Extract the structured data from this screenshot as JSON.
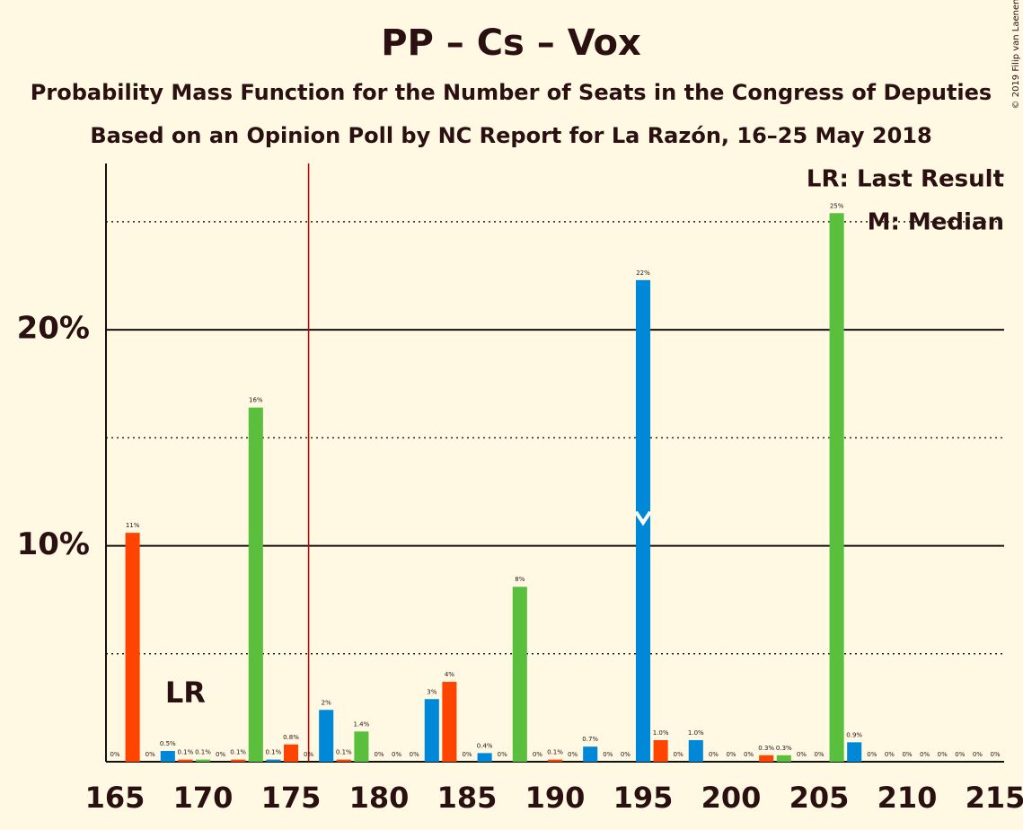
{
  "chart_data": {
    "type": "bar",
    "title": "PP – Cs – Vox",
    "subtitle": "Probability Mass Function for the Number of Seats in the Congress of Deputies",
    "subtitle2": "Based on an Opinion Poll by NC Report for La Razón, 16–25 May 2018",
    "copyright": "© 2019 Filip van Laenen",
    "legend_lr": "LR: Last Result",
    "legend_median": "M: Median",
    "lr_label": "LR",
    "last_result": 169,
    "median": 195,
    "majority": 176,
    "x": [
      165,
      166,
      167,
      168,
      169,
      170,
      171,
      172,
      173,
      174,
      175,
      176,
      177,
      178,
      179,
      180,
      181,
      182,
      183,
      184,
      185,
      186,
      187,
      188,
      189,
      190,
      191,
      192,
      193,
      194,
      195,
      196,
      197,
      198,
      199,
      200,
      201,
      202,
      203,
      204,
      205,
      206,
      207,
      208,
      209,
      210,
      211,
      212,
      213,
      214,
      215
    ],
    "values": [
      0,
      10.6,
      0,
      0.5,
      0.1,
      0.1,
      0,
      0.1,
      16.4,
      0.1,
      0.8,
      0,
      2.4,
      0.1,
      1.4,
      0,
      0,
      0,
      2.9,
      3.7,
      0,
      0.4,
      0,
      8.1,
      0,
      0.1,
      0,
      0.7,
      0,
      0,
      22.3,
      1.0,
      0,
      1.0,
      0,
      0,
      0,
      0.3,
      0.3,
      0,
      0,
      25.4,
      0.9,
      0,
      0,
      0,
      0,
      0,
      0,
      0,
      0
    ],
    "value_labels": [
      "0%",
      "11%",
      "0%",
      "0.5%",
      "0.1%",
      "0.1%",
      "0%",
      "0.1%",
      "16%",
      "0.1%",
      "0.8%",
      "0%",
      "2%",
      "0.1%",
      "1.4%",
      "0%",
      "0%",
      "0%",
      "3%",
      "4%",
      "0%",
      "0.4%",
      "0%",
      "8%",
      "0%",
      "0.1%",
      "0%",
      "0.7%",
      "0%",
      "0%",
      "22%",
      "1.0%",
      "0%",
      "1.0%",
      "0%",
      "0%",
      "0%",
      "0.3%",
      "0.3%",
      "0%",
      "0%",
      "25%",
      "0.9%",
      "0%",
      "0%",
      "0%",
      "0%",
      "0%",
      "0%",
      "0%",
      "0%"
    ],
    "colors": [
      "#0088d8",
      "#ff4400",
      "#5abf3c",
      "#0088d8",
      "#ff4400",
      "#5abf3c",
      "#0088d8",
      "#ff4400",
      "#5abf3c",
      "#0088d8",
      "#ff4400",
      "#5abf3c",
      "#0088d8",
      "#ff4400",
      "#5abf3c",
      "#0088d8",
      "#ff4400",
      "#5abf3c",
      "#0088d8",
      "#ff4400",
      "#5abf3c",
      "#0088d8",
      "#ff4400",
      "#5abf3c",
      "#0088d8",
      "#ff4400",
      "#5abf3c",
      "#0088d8",
      "#ff4400",
      "#5abf3c",
      "#0088d8",
      "#ff4400",
      "#5abf3c",
      "#0088d8",
      "#ff4400",
      "#ff4400",
      "#5abf3c",
      "#ff4400",
      "#5abf3c",
      "#0088d8",
      "#ff4400",
      "#5abf3c",
      "#0088d8",
      "#ff4400",
      "#5abf3c",
      "#0088d8",
      "#ff4400",
      "#5abf3c",
      "#0088d8",
      "#ff4400",
      "#5abf3c"
    ],
    "xlim": [
      165,
      215
    ],
    "xticks": [
      165,
      170,
      175,
      180,
      185,
      190,
      195,
      200,
      205,
      210,
      215
    ],
    "ylim": [
      0,
      27.7
    ],
    "yticks": [
      {
        "value": 10,
        "label": "10%"
      },
      {
        "value": 20,
        "label": "20%"
      }
    ],
    "minor_yticks": [
      5,
      15,
      25
    ],
    "majority_color": "#c00000"
  }
}
